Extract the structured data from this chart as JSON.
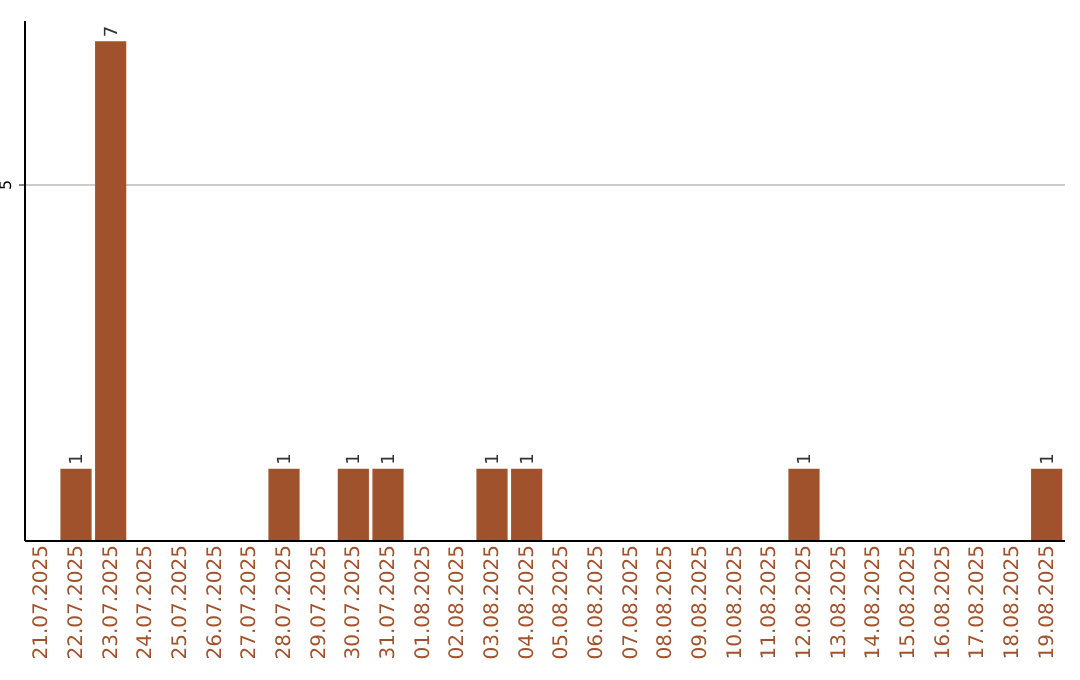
{
  "chart_data": {
    "type": "bar",
    "categories": [
      "21.07.2025",
      "22.07.2025",
      "23.07.2025",
      "24.07.2025",
      "25.07.2025",
      "26.07.2025",
      "27.07.2025",
      "28.07.2025",
      "29.07.2025",
      "30.07.2025",
      "31.07.2025",
      "01.08.2025",
      "02.08.2025",
      "03.08.2025",
      "04.08.2025",
      "05.08.2025",
      "06.08.2025",
      "07.08.2025",
      "08.08.2025",
      "09.08.2025",
      "10.08.2025",
      "11.08.2025",
      "12.08.2025",
      "13.08.2025",
      "14.08.2025",
      "15.08.2025",
      "16.08.2025",
      "17.08.2025",
      "18.08.2025",
      "19.08.2025"
    ],
    "values": [
      null,
      1,
      7,
      null,
      null,
      null,
      null,
      1,
      null,
      1,
      1,
      null,
      null,
      1,
      1,
      null,
      null,
      null,
      null,
      null,
      null,
      null,
      1,
      null,
      null,
      null,
      null,
      null,
      null,
      1
    ],
    "color": "#a0522d",
    "ylim": [
      0,
      7.3
    ],
    "yticks": [
      5
    ],
    "grid": "y",
    "data_labels": true
  }
}
